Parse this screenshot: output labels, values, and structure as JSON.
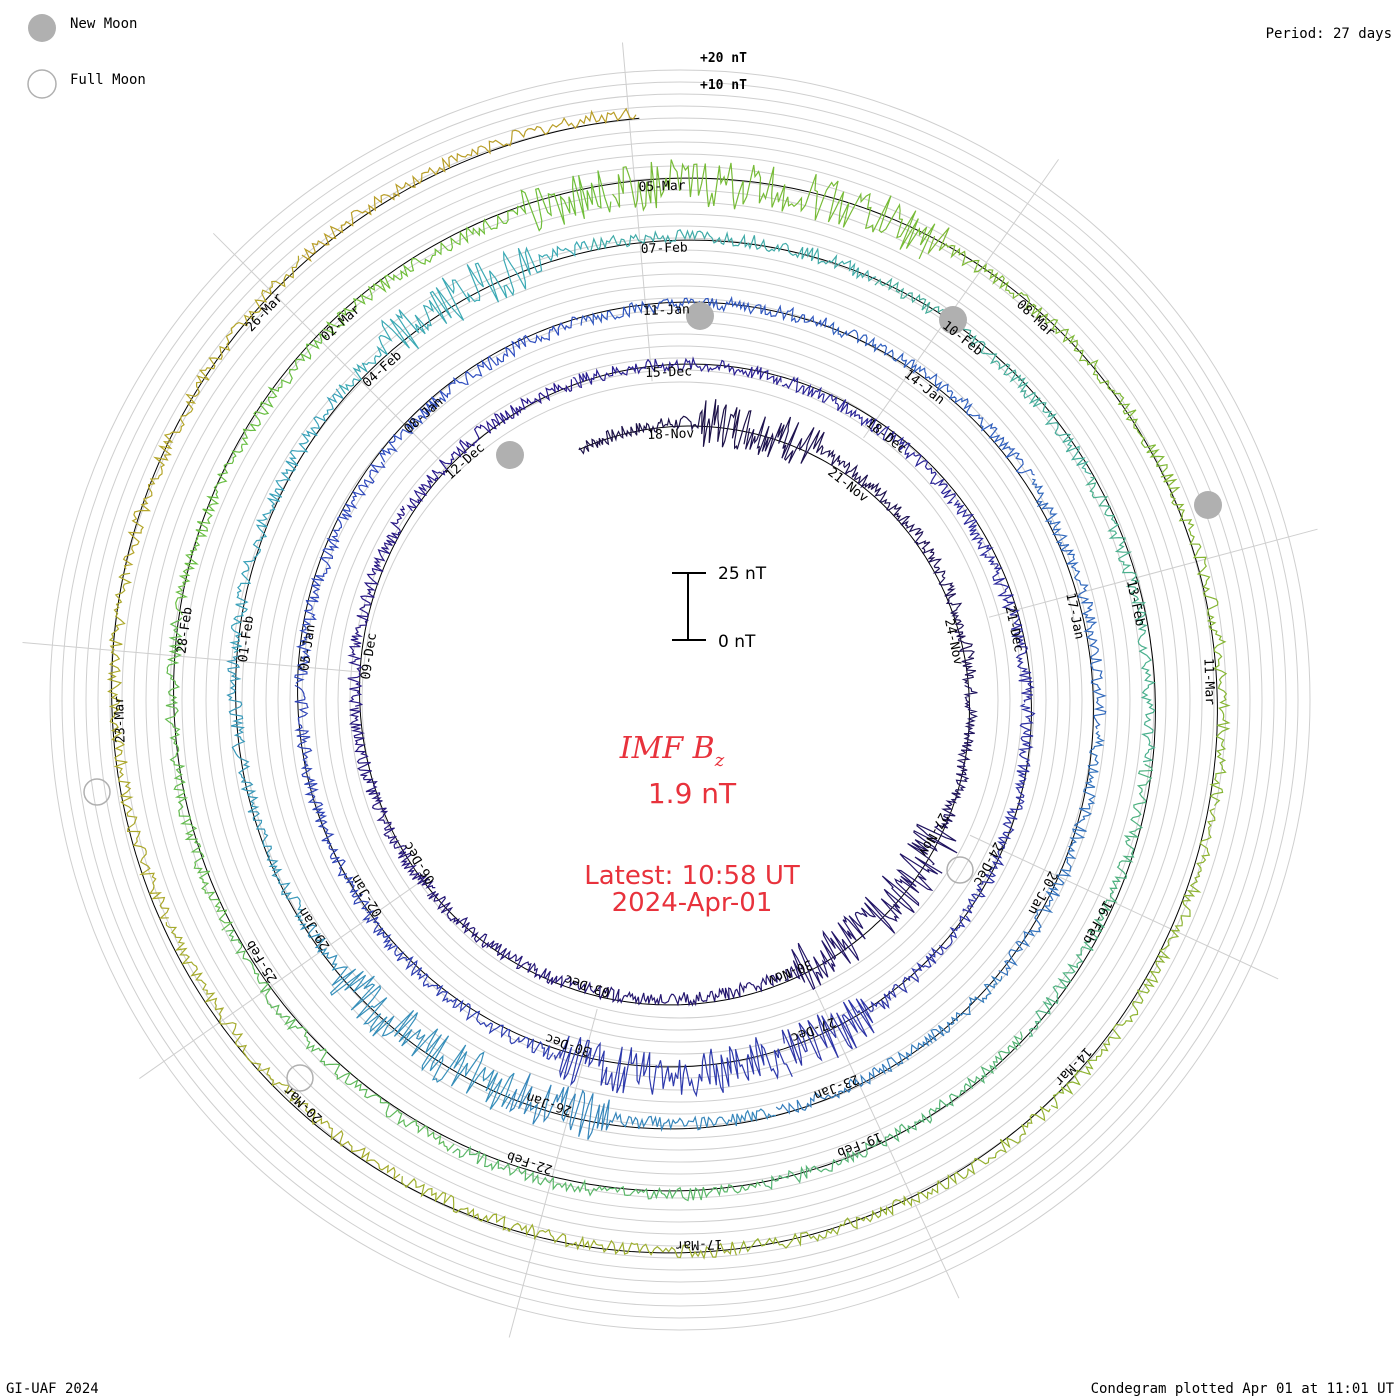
{
  "legend": {
    "new_moon_label": "New Moon",
    "full_moon_label": "Full Moon",
    "new_moon_color": "#b0b0b0"
  },
  "period_label": "Period: 27 days",
  "ring_scale": {
    "outer_label": "+20 nT",
    "inner_label": "+10 nT"
  },
  "scale_bar": {
    "top_label": "25 nT",
    "bottom_label": "0 nT"
  },
  "center": {
    "title": "IMF B",
    "title_sub": "z",
    "value": "1.9 nT",
    "latest": "Latest: 10:58 UT",
    "date": "2024-Apr-01",
    "color": "#e8323c"
  },
  "footer": {
    "left": "GI-UAF 2024",
    "right": "Condegram plotted Apr 01 at 11:01 UT"
  },
  "chart_data": {
    "type": "line",
    "description_kind": "condegram spiral",
    "period_days": 27,
    "series_colors": [
      "#1a1040",
      "#2a1a8c",
      "#2f4cc0",
      "#3aa8b8",
      "#6cbf3a",
      "#b8a428",
      "#c83020"
    ],
    "rings": [
      {
        "dates": [
          "18-Nov",
          "21-Nov",
          "24-Nov",
          "27-Nov",
          "30-Nov",
          "03-Dec",
          "06-Dec",
          "09-Dec",
          "12-Dec"
        ]
      },
      {
        "dates": [
          "15-Dec",
          "18-Dec",
          "21-Dec",
          "24-Dec",
          "27-Dec",
          "30-Dec",
          "02-Jan",
          "05-Jan",
          "08-Jan"
        ]
      },
      {
        "dates": [
          "11-Jan",
          "14-Jan",
          "17-Jan",
          "20-Jan",
          "23-Jan",
          "26-Jan",
          "29-Jan",
          "01-Feb",
          "04-Feb"
        ]
      },
      {
        "dates": [
          "07-Feb",
          "10-Feb",
          "13-Feb",
          "16-Feb",
          "19-Feb",
          "22-Feb",
          "25-Feb",
          "28-Feb",
          "02-Mar"
        ]
      },
      {
        "dates": [
          "05-Mar",
          "08-Mar",
          "11-Mar",
          "14-Mar",
          "17-Mar",
          "20-Mar",
          "23-Mar",
          "26-Mar"
        ]
      }
    ],
    "units": "nT",
    "latest_value": 1.9,
    "latest_time": "10:58 UT",
    "latest_date": "2024-Apr-01"
  }
}
